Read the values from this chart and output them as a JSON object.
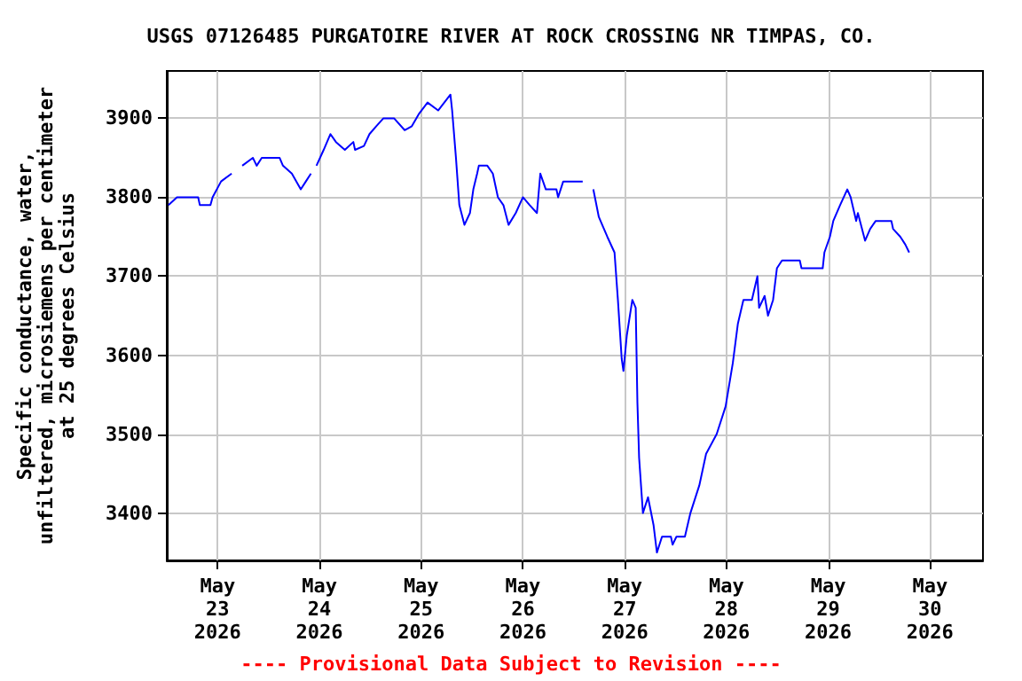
{
  "chart_data": {
    "type": "line",
    "title": "USGS 07126485 PURGATOIRE RIVER AT ROCK CROSSING NR TIMPAS, CO.",
    "ylabel": "Specific conductance, water,\nunfiltered, microsiemens per centimeter\nat 25 degrees Celsius",
    "annotations": [
      "---- Provisional Data Subject to Revision ----"
    ],
    "xlim": [
      "2026-05-22T12:00",
      "2026-05-30T12:30"
    ],
    "xticks": [
      {
        "value": "2026-05-23T00:00",
        "label": "May\n23\n2026"
      },
      {
        "value": "2026-05-24T00:00",
        "label": "May\n24\n2026"
      },
      {
        "value": "2026-05-25T00:00",
        "label": "May\n25\n2026"
      },
      {
        "value": "2026-05-26T00:00",
        "label": "May\n26\n2026"
      },
      {
        "value": "2026-05-27T00:00",
        "label": "May\n27\n2026"
      },
      {
        "value": "2026-05-28T00:00",
        "label": "May\n28\n2026"
      },
      {
        "value": "2026-05-29T00:00",
        "label": "May\n29\n2026"
      },
      {
        "value": "2026-05-30T00:00",
        "label": "May\n30\n2026"
      }
    ],
    "ylim": [
      3340,
      3960
    ],
    "yticks": [
      3400,
      3500,
      3600,
      3700,
      3800,
      3900
    ],
    "grid": true,
    "marker": "none",
    "line_style": "solid",
    "series": [
      {
        "color": "#0000ff",
        "x": [
          "2026-05-22T12:24",
          "2026-05-22T14:24",
          "2026-05-22T19:24",
          "2026-05-22T19:48",
          "2026-05-22T22:18",
          "2026-05-22T22:48",
          "2026-05-23T00:48",
          "2026-05-23T03:18",
          "2026-05-23T04:30",
          "2026-05-23T05:48",
          "2026-05-23T08:18",
          "2026-05-23T09:12",
          "2026-05-23T10:24",
          "2026-05-23T14:36",
          "2026-05-23T15:24",
          "2026-05-23T17:30",
          "2026-05-23T19:36",
          "2026-05-23T20:48",
          "2026-05-23T22:00",
          "2026-05-23T22:40",
          "2026-05-23T23:18",
          "2026-05-24T01:00",
          "2026-05-24T02:36",
          "2026-05-24T03:54",
          "2026-05-24T06:00",
          "2026-05-24T08:00",
          "2026-05-24T08:24",
          "2026-05-24T10:30",
          "2026-05-24T11:48",
          "2026-05-24T13:24",
          "2026-05-24T15:06",
          "2026-05-24T17:36",
          "2026-05-24T20:06",
          "2026-05-24T21:48",
          "2026-05-24T23:24",
          "2026-05-25T01:30",
          "2026-05-25T04:00",
          "2026-05-25T06:54",
          "2026-05-25T07:18",
          "2026-05-25T08:12",
          "2026-05-25T09:00",
          "2026-05-25T10:12",
          "2026-05-25T11:30",
          "2026-05-25T12:18",
          "2026-05-25T13:12",
          "2026-05-25T13:36",
          "2026-05-25T15:36",
          "2026-05-25T16:54",
          "2026-05-25T18:06",
          "2026-05-25T19:24",
          "2026-05-25T20:36",
          "2026-05-25T22:18",
          "2026-05-26T00:00",
          "2026-05-26T01:36",
          "2026-05-26T03:18",
          "2026-05-26T04:06",
          "2026-05-26T05:24",
          "2026-05-26T07:54",
          "2026-05-26T08:18",
          "2026-05-26T09:30",
          "2026-05-26T14:06",
          "2026-05-26T15:20",
          "2026-05-26T16:36",
          "2026-05-26T17:54",
          "2026-05-26T19:54",
          "2026-05-26T21:36",
          "2026-05-26T22:24",
          "2026-05-26T23:18",
          "2026-05-26T23:42",
          "2026-05-27T00:30",
          "2026-05-27T01:48",
          "2026-05-27T02:36",
          "2026-05-27T03:00",
          "2026-05-27T03:24",
          "2026-05-27T04:18",
          "2026-05-27T05:30",
          "2026-05-27T06:48",
          "2026-05-27T07:36",
          "2026-05-27T08:48",
          "2026-05-27T10:54",
          "2026-05-27T11:18",
          "2026-05-27T12:12",
          "2026-05-27T14:12",
          "2026-05-27T15:30",
          "2026-05-27T17:36",
          "2026-05-27T19:12",
          "2026-05-27T21:42",
          "2026-05-27T23:48",
          "2026-05-28T01:30",
          "2026-05-28T02:42",
          "2026-05-28T04:00",
          "2026-05-28T06:00",
          "2026-05-28T07:18",
          "2026-05-28T07:42",
          "2026-05-28T09:00",
          "2026-05-28T09:48",
          "2026-05-28T11:00",
          "2026-05-28T11:54",
          "2026-05-28T13:06",
          "2026-05-28T17:18",
          "2026-05-28T17:42",
          "2026-05-28T22:42",
          "2026-05-28T23:06",
          "2026-05-29T00:24",
          "2026-05-29T01:12",
          "2026-05-29T02:48",
          "2026-05-29T04:30",
          "2026-05-29T05:18",
          "2026-05-29T06:36",
          "2026-05-29T07:00",
          "2026-05-29T08:42",
          "2026-05-29T09:54",
          "2026-05-29T11:12",
          "2026-05-29T14:54",
          "2026-05-29T15:18",
          "2026-05-29T17:00",
          "2026-05-29T18:12",
          "2026-05-29T19:06"
        ],
        "values": [
          3790,
          3800,
          3800,
          3790,
          3790,
          3800,
          3820,
          3830,
          null,
          3840,
          3850,
          3840,
          3850,
          3850,
          3840,
          3830,
          3810,
          3820,
          3830,
          null,
          3840,
          3860,
          3880,
          3870,
          3860,
          3870,
          3860,
          3865,
          3880,
          3890,
          3900,
          3900,
          3885,
          3890,
          3905,
          3920,
          3910,
          3930,
          3910,
          3850,
          3790,
          3765,
          3780,
          3810,
          3830,
          3840,
          3840,
          3830,
          3800,
          3790,
          3765,
          3780,
          3800,
          3790,
          3780,
          3830,
          3810,
          3810,
          3800,
          3820,
          3820,
          null,
          3810,
          3775,
          3750,
          3730,
          3670,
          3595,
          3580,
          3625,
          3670,
          3660,
          3540,
          3470,
          3400,
          3420,
          3385,
          3350,
          3370,
          3370,
          3360,
          3370,
          3370,
          3400,
          3435,
          3475,
          3500,
          3535,
          3590,
          3640,
          3670,
          3670,
          3700,
          3660,
          3675,
          3650,
          3670,
          3710,
          3720,
          3720,
          3710,
          3710,
          3730,
          3750,
          3770,
          3790,
          3810,
          3800,
          3770,
          3780,
          3745,
          3760,
          3770,
          3770,
          3760,
          3750,
          3740,
          3730
        ]
      }
    ]
  }
}
